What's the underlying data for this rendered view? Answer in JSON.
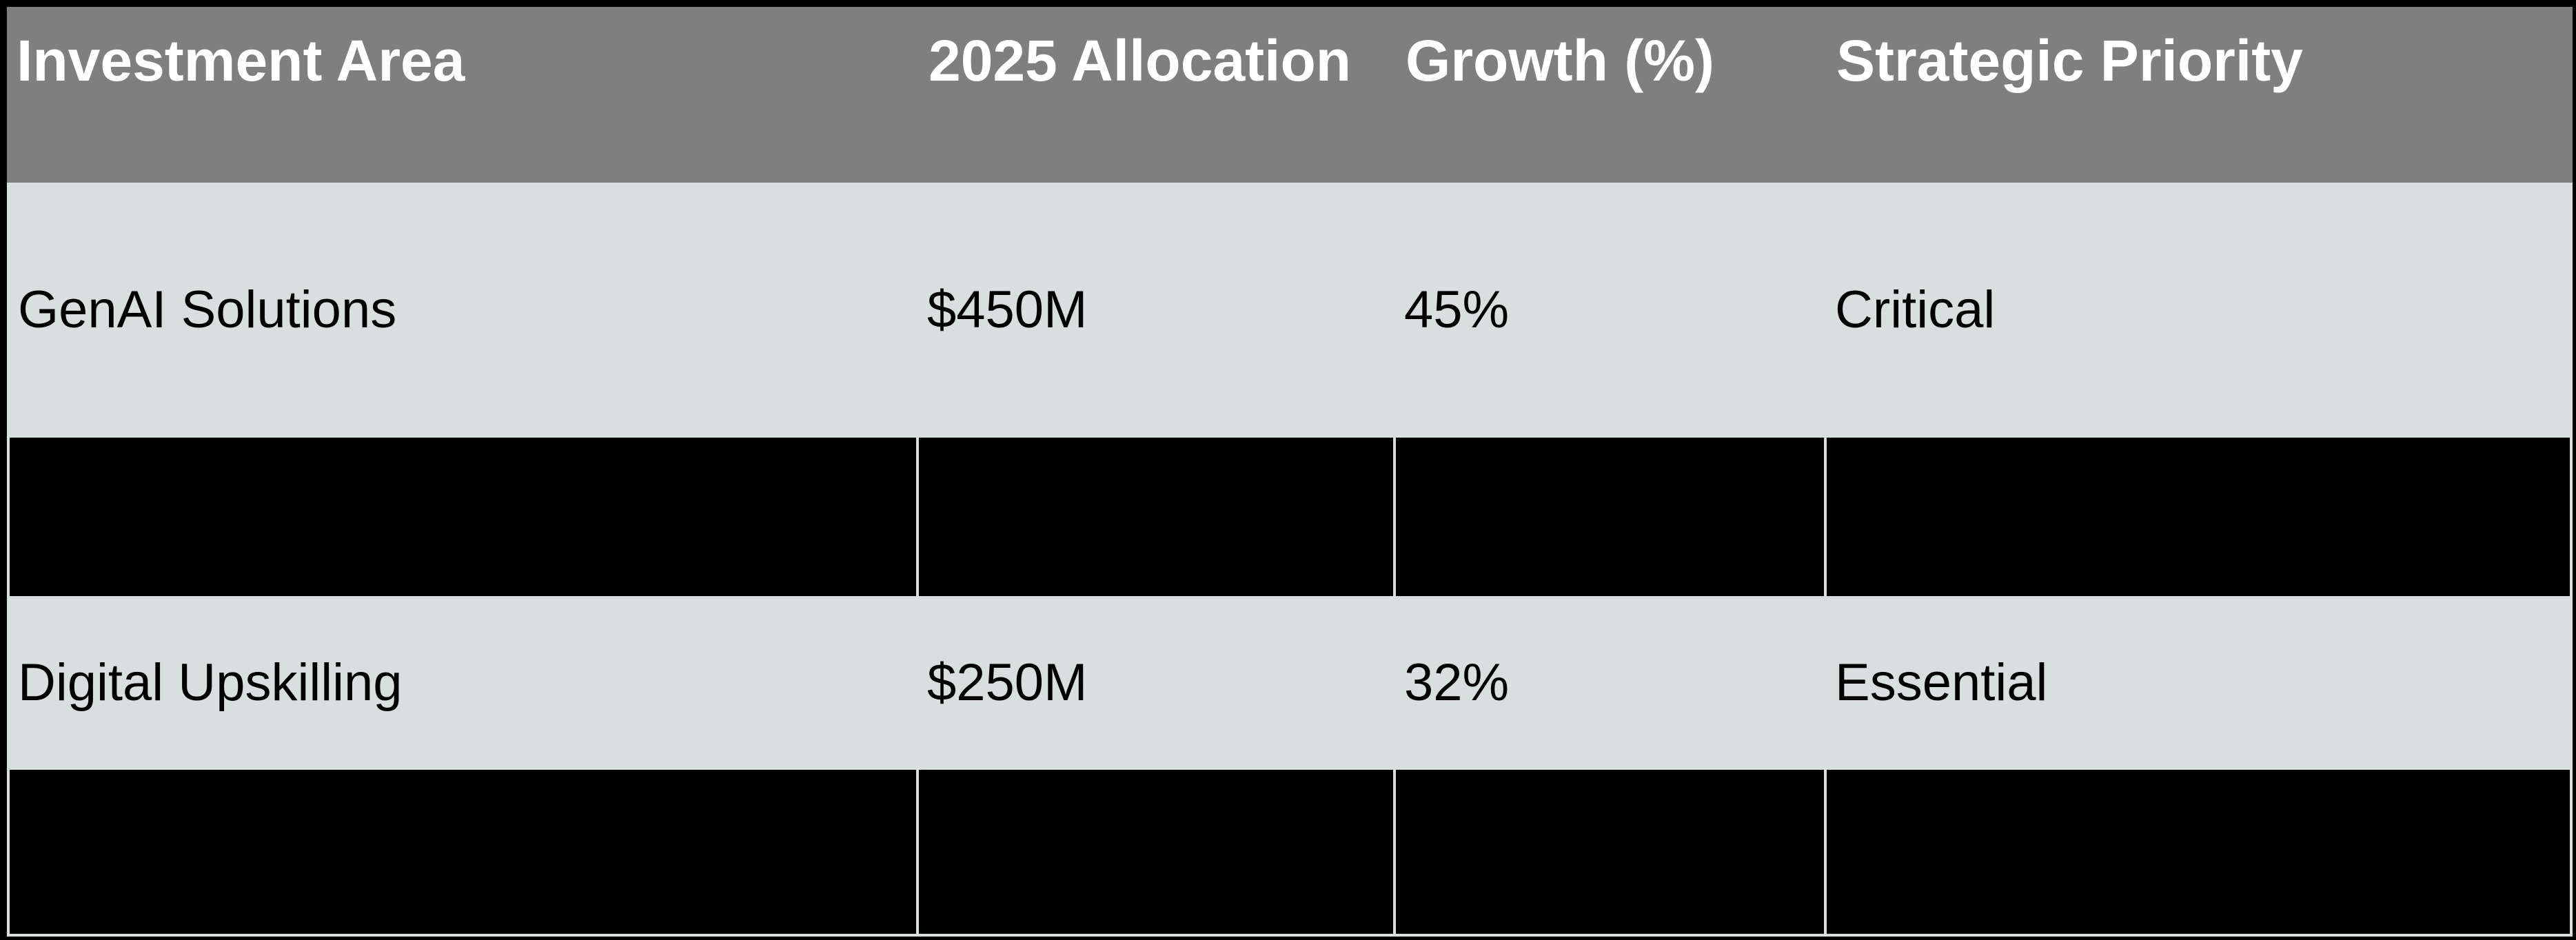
{
  "table": {
    "header": {
      "col1": "Investment Area",
      "col2": "2025 Allocation",
      "col3": "Growth (%)",
      "col4": "Strategic Priority"
    },
    "rows": [
      {
        "area": "GenAI Solutions",
        "allocation": "$450M",
        "growth": "45%",
        "priority": "Critical"
      },
      {
        "area": "",
        "allocation": "",
        "growth": "",
        "priority": ""
      },
      {
        "area": "Digital Upskilling",
        "allocation": "$250M",
        "growth": "32%",
        "priority": "Essential"
      },
      {
        "area": "",
        "allocation": "",
        "growth": "",
        "priority": ""
      }
    ],
    "colors": {
      "header_bg": "#7F7F7F",
      "header_text": "#FFFFFF",
      "light_row_bg": "#D9DEDF",
      "dark_row_bg": "#000000",
      "data_text": "#000000",
      "outer_border": "#000000",
      "gridline": "#D9DEDF"
    }
  },
  "chart_data": {
    "type": "table",
    "title": "",
    "columns": [
      "Investment Area",
      "2025 Allocation",
      "Growth (%)",
      "Strategic Priority"
    ],
    "rows": [
      [
        "GenAI Solutions",
        "$450M",
        "45%",
        "Critical"
      ],
      [
        "",
        "",
        "",
        ""
      ],
      [
        "Digital Upskilling",
        "$250M",
        "32%",
        "Essential"
      ],
      [
        "",
        "",
        "",
        ""
      ]
    ],
    "notes_layout": "rows 2 and 4 are solid black (redacted) bands"
  }
}
